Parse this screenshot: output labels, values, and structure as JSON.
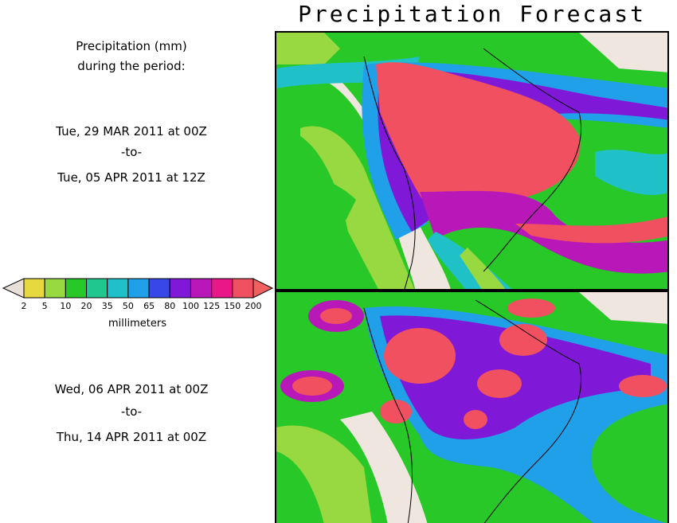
{
  "title": "Precipitation Forecast",
  "left_panel": {
    "header_line1": "Precipitation (mm)",
    "header_line2": "during the period:",
    "period1": {
      "start": "Tue, 29 MAR 2011 at 00Z",
      "sep": "-to-",
      "end": "Tue, 05 APR 2011 at 12Z"
    },
    "period2": {
      "start": "Wed, 06 APR 2011 at 00Z",
      "sep": "-to-",
      "end": "Thu, 14 APR 2011 at 00Z"
    }
  },
  "colorbar": {
    "unit": "millimeters",
    "ticks": [
      "2",
      "5",
      "10",
      "20",
      "35",
      "50",
      "65",
      "80",
      "100",
      "125",
      "150",
      "200"
    ],
    "colors": [
      "#e8e0d8",
      "#e8d840",
      "#98d840",
      "#28c828",
      "#20c890",
      "#20c0c8",
      "#20a0e8",
      "#3848e8",
      "#8018d8",
      "#b818b8",
      "#e81888",
      "#f05060",
      "#f06060"
    ]
  },
  "colors": {
    "land_dry": "#efe7df",
    "light": "#e8d840",
    "low": "#98d840",
    "green": "#28c828",
    "teal": "#20c890",
    "cyan": "#20c0c8",
    "blue": "#3848e8",
    "purple": "#8018d8",
    "magenta": "#d818a0",
    "red": "#f05060"
  }
}
